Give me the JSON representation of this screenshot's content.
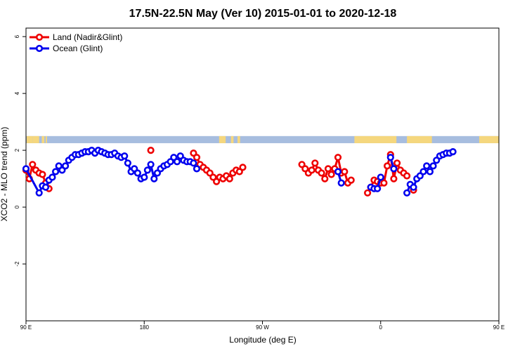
{
  "chart_data": {
    "type": "line",
    "title": "17.5N-22.5N May (Ver 10)   2015-01-01 to 2020-12-18",
    "xlabel": "Longitude (deg E)",
    "ylabel": "XCO2 - MLO trend (ppm)",
    "xlim": [
      90,
      450
    ],
    "ylim": [
      -4,
      6.3
    ],
    "x_ticks": [
      {
        "value": 90,
        "label": "90 E"
      },
      {
        "value": 180,
        "label": "180"
      },
      {
        "value": 270,
        "label": "90 W"
      },
      {
        "value": 360,
        "label": "0"
      },
      {
        "value": 450,
        "label": "90 E"
      },
      {
        "value": 540,
        "label": "180"
      }
    ],
    "y_ticks": [
      {
        "value": -2,
        "label": "-2"
      },
      {
        "value": 0,
        "label": "0"
      },
      {
        "value": 2,
        "label": "2"
      },
      {
        "value": 4,
        "label": "4"
      },
      {
        "value": 6,
        "label": "6"
      }
    ],
    "legend_position": "top-left",
    "land_ocean_strip": {
      "y_range": [
        2.25,
        2.5
      ],
      "ocean_color": "#a7bddf",
      "land_color": "#f5d77e",
      "land_segments": [
        [
          90.5,
          95
        ],
        [
          95,
          100
        ],
        [
          102,
          104
        ],
        [
          105,
          106
        ],
        [
          237,
          242
        ],
        [
          246,
          248
        ],
        [
          251,
          253
        ],
        [
          340,
          372
        ],
        [
          380,
          399
        ],
        [
          435,
          453
        ],
        [
          456,
          458
        ]
      ]
    },
    "series": [
      {
        "name": "Land (Nadir&Glint)",
        "color": "#ee0000",
        "segments": [
          [
            [
              90,
              1.3
            ],
            [
              92.5,
              1.0
            ],
            [
              95,
              1.5
            ],
            [
              97.5,
              1.3
            ],
            [
              100,
              1.2
            ],
            [
              102.5,
              1.15
            ],
            [
              105,
              0.85
            ],
            [
              107.5,
              0.65
            ]
          ],
          [
            [
              185,
              2.0
            ]
          ],
          [
            [
              217.5,
              1.9
            ],
            [
              220,
              1.75
            ],
            [
              222.5,
              1.5
            ],
            [
              225,
              1.4
            ],
            [
              227.5,
              1.3
            ],
            [
              230,
              1.2
            ],
            [
              232.5,
              1.05
            ],
            [
              235,
              0.9
            ],
            [
              237.5,
              1.05
            ],
            [
              240,
              1.0
            ],
            [
              242.5,
              1.1
            ],
            [
              245,
              1.0
            ],
            [
              247.5,
              1.2
            ],
            [
              250,
              1.3
            ],
            [
              252.5,
              1.25
            ],
            [
              255,
              1.4
            ]
          ],
          [
            [
              300,
              1.5
            ],
            [
              302.5,
              1.35
            ],
            [
              305,
              1.2
            ],
            [
              307.5,
              1.3
            ],
            [
              310,
              1.55
            ],
            [
              312.5,
              1.3
            ],
            [
              315,
              1.2
            ],
            [
              317.5,
              1.0
            ],
            [
              320,
              1.35
            ],
            [
              322.5,
              1.15
            ],
            [
              325,
              1.35
            ],
            [
              327.5,
              1.75
            ],
            [
              330,
              1.2
            ],
            [
              332.5,
              1.25
            ],
            [
              335,
              0.85
            ],
            [
              337.5,
              0.95
            ]
          ],
          [
            [
              350,
              0.5
            ],
            [
              352.5,
              0.7
            ],
            [
              355,
              0.95
            ],
            [
              357.5,
              0.9
            ],
            [
              360,
              0.85
            ],
            [
              362.5,
              0.85
            ],
            [
              365,
              1.45
            ],
            [
              367.5,
              1.85
            ],
            [
              370,
              1.0
            ],
            [
              372.5,
              1.55
            ],
            [
              375,
              1.3
            ],
            [
              377.5,
              1.2
            ],
            [
              380,
              1.1
            ]
          ],
          [
            [
              385,
              0.6
            ]
          ]
        ]
      },
      {
        "name": "Ocean (Glint)",
        "color": "#0000ee",
        "segments": [
          [
            [
              90,
              1.35
            ],
            [
              100,
              0.5
            ],
            [
              102.5,
              0.75
            ],
            [
              105,
              0.7
            ],
            [
              107.5,
              0.95
            ],
            [
              110,
              1.05
            ],
            [
              112.5,
              1.25
            ],
            [
              115,
              1.45
            ],
            [
              117.5,
              1.3
            ],
            [
              120,
              1.45
            ],
            [
              122.5,
              1.65
            ],
            [
              125,
              1.75
            ],
            [
              127.5,
              1.85
            ],
            [
              130,
              1.85
            ],
            [
              132.5,
              1.9
            ],
            [
              135,
              1.95
            ],
            [
              137.5,
              1.95
            ],
            [
              140,
              2.0
            ],
            [
              142.5,
              1.9
            ],
            [
              145,
              2.0
            ],
            [
              147.5,
              1.95
            ],
            [
              150,
              1.9
            ],
            [
              152.5,
              1.85
            ],
            [
              155,
              1.85
            ],
            [
              157.5,
              1.9
            ],
            [
              160,
              1.8
            ],
            [
              162.5,
              1.75
            ],
            [
              165,
              1.8
            ],
            [
              167.5,
              1.55
            ],
            [
              170,
              1.25
            ],
            [
              172.5,
              1.35
            ],
            [
              175,
              1.2
            ],
            [
              177.5,
              1.0
            ],
            [
              180,
              1.05
            ],
            [
              182.5,
              1.3
            ],
            [
              185,
              1.5
            ],
            [
              187.5,
              1.0
            ],
            [
              190,
              1.2
            ],
            [
              192.5,
              1.35
            ],
            [
              195,
              1.45
            ],
            [
              197.5,
              1.5
            ],
            [
              200,
              1.6
            ],
            [
              202.5,
              1.75
            ],
            [
              205,
              1.6
            ],
            [
              207.5,
              1.8
            ],
            [
              210,
              1.65
            ],
            [
              212.5,
              1.6
            ],
            [
              215,
              1.6
            ],
            [
              217.5,
              1.55
            ],
            [
              220,
              1.35
            ]
          ],
          [
            [
              327.5,
              1.25
            ],
            [
              330,
              0.85
            ]
          ],
          [
            [
              352.5,
              0.7
            ],
            [
              355,
              0.65
            ],
            [
              357.5,
              0.65
            ],
            [
              360,
              1.05
            ]
          ],
          [
            [
              367.5,
              1.75
            ],
            [
              370,
              1.35
            ]
          ],
          [
            [
              380,
              0.5
            ],
            [
              382.5,
              0.8
            ],
            [
              385,
              0.7
            ],
            [
              387.5,
              1.0
            ],
            [
              390,
              1.1
            ],
            [
              392.5,
              1.25
            ],
            [
              395,
              1.45
            ],
            [
              397.5,
              1.25
            ],
            [
              400,
              1.45
            ],
            [
              402.5,
              1.65
            ],
            [
              405,
              1.8
            ],
            [
              407.5,
              1.85
            ],
            [
              410,
              1.9
            ],
            [
              412.5,
              1.9
            ],
            [
              415,
              1.95
            ]
          ]
        ]
      }
    ]
  }
}
